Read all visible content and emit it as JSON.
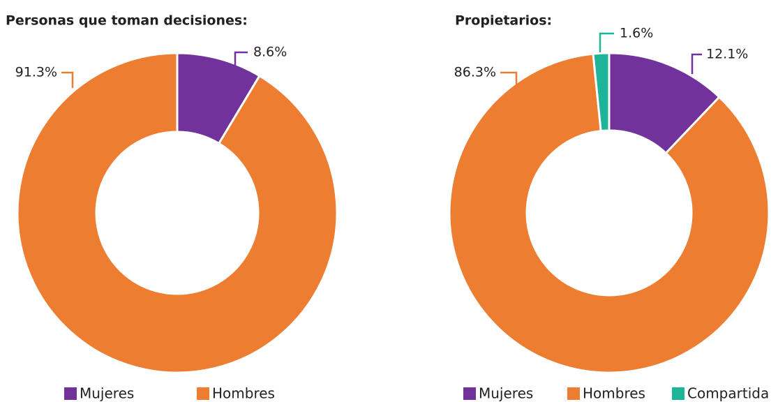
{
  "chart_data": [
    {
      "type": "pie",
      "donut": true,
      "title": "Personas que toman decisiones:",
      "categories": [
        "Mujeres",
        "Hombres"
      ],
      "values": [
        8.6,
        91.3
      ],
      "value_labels": [
        "8.6%",
        "91.3%"
      ],
      "colors": [
        "#71339b",
        "#ed7d31"
      ]
    },
    {
      "type": "pie",
      "donut": true,
      "title": "Propietarios:",
      "categories": [
        "Mujeres",
        "Hombres",
        "Compartida"
      ],
      "values": [
        12.1,
        86.3,
        1.6
      ],
      "value_labels": [
        "12.1%",
        "86.3%",
        "1.6%"
      ],
      "colors": [
        "#71339b",
        "#ed7d31",
        "#1db49a"
      ]
    }
  ]
}
